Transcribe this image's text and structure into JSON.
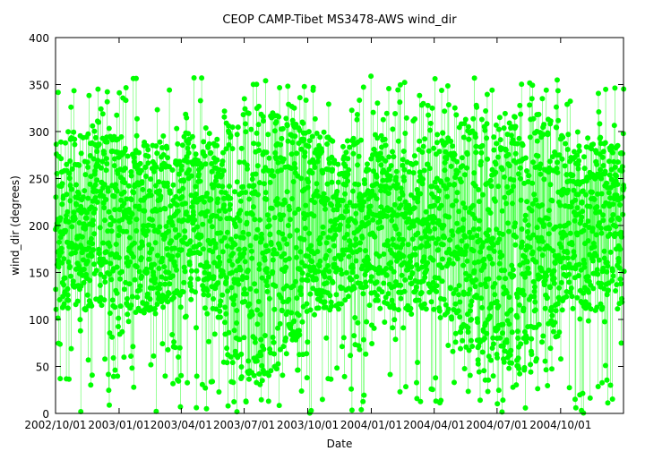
{
  "chart_data": {
    "type": "scatter",
    "title": "CEOP CAMP-Tibet MS3478-AWS  wind_dir",
    "xlabel": "Date",
    "ylabel": "wind_dir (degrees)",
    "x_range": [
      "2002-10-01",
      "2004-12-31"
    ],
    "ylim": [
      0,
      400
    ],
    "y_ticks": [
      0,
      50,
      100,
      150,
      200,
      250,
      300,
      350,
      400
    ],
    "x_ticks": [
      {
        "date": "2002-10-01",
        "label": "2002/10/01"
      },
      {
        "date": "2003-01-01",
        "label": "2003/01/01"
      },
      {
        "date": "2003-04-01",
        "label": "2003/04/01"
      },
      {
        "date": "2003-07-01",
        "label": "2003/07/01"
      },
      {
        "date": "2003-10-01",
        "label": "2003/10/01"
      },
      {
        "date": "2004-01-01",
        "label": "2004/01/01"
      },
      {
        "date": "2004-04-01",
        "label": "2004/04/01"
      },
      {
        "date": "2004-07-01",
        "label": "2004/07/01"
      },
      {
        "date": "2004-10-01",
        "label": "2004/10/01"
      }
    ],
    "grid": false,
    "series": [
      {
        "color": "#00ff00",
        "marker": "circle",
        "connected": true,
        "density_by_month": [
          {
            "month": "2002-10",
            "min": 0,
            "max": 360,
            "core_low": 110,
            "core_high": 300
          },
          {
            "month": "2002-11",
            "min": 0,
            "max": 360,
            "core_low": 110,
            "core_high": 300
          },
          {
            "month": "2002-12",
            "min": 0,
            "max": 360,
            "core_low": 110,
            "core_high": 295
          },
          {
            "month": "2003-01",
            "min": 0,
            "max": 360,
            "core_low": 105,
            "core_high": 290
          },
          {
            "month": "2003-02",
            "min": 0,
            "max": 360,
            "core_low": 105,
            "core_high": 290
          },
          {
            "month": "2003-03",
            "min": 0,
            "max": 360,
            "core_low": 110,
            "core_high": 290
          },
          {
            "month": "2003-04",
            "min": 0,
            "max": 360,
            "core_low": 120,
            "core_high": 300
          },
          {
            "month": "2003-05",
            "min": 0,
            "max": 360,
            "core_low": 100,
            "core_high": 300
          },
          {
            "month": "2003-06",
            "min": 0,
            "max": 360,
            "core_low": 30,
            "core_high": 330
          },
          {
            "month": "2003-07",
            "min": 0,
            "max": 360,
            "core_low": 30,
            "core_high": 330
          },
          {
            "month": "2003-08",
            "min": 0,
            "max": 360,
            "core_low": 40,
            "core_high": 320
          },
          {
            "month": "2003-09",
            "min": 0,
            "max": 360,
            "core_low": 80,
            "core_high": 310
          },
          {
            "month": "2003-10",
            "min": 0,
            "max": 360,
            "core_low": 110,
            "core_high": 300
          },
          {
            "month": "2003-11",
            "min": 0,
            "max": 360,
            "core_low": 110,
            "core_high": 295
          },
          {
            "month": "2003-12",
            "min": 0,
            "max": 360,
            "core_low": 110,
            "core_high": 295
          },
          {
            "month": "2004-01",
            "min": 0,
            "max": 360,
            "core_low": 110,
            "core_high": 295
          },
          {
            "month": "2004-02",
            "min": 0,
            "max": 360,
            "core_low": 105,
            "core_high": 290
          },
          {
            "month": "2004-03",
            "min": 0,
            "max": 360,
            "core_low": 110,
            "core_high": 290
          },
          {
            "month": "2004-04",
            "min": 0,
            "max": 360,
            "core_low": 100,
            "core_high": 300
          },
          {
            "month": "2004-05",
            "min": 0,
            "max": 360,
            "core_low": 60,
            "core_high": 310
          },
          {
            "month": "2004-06",
            "min": 0,
            "max": 360,
            "core_low": 30,
            "core_high": 330
          },
          {
            "month": "2004-07",
            "min": 0,
            "max": 360,
            "core_low": 40,
            "core_high": 320
          },
          {
            "month": "2004-08",
            "min": 0,
            "max": 360,
            "core_low": 40,
            "core_high": 320
          },
          {
            "month": "2004-09",
            "min": 0,
            "max": 360,
            "core_low": 80,
            "core_high": 310
          },
          {
            "month": "2004-10",
            "min": 0,
            "max": 360,
            "core_low": 110,
            "core_high": 300
          },
          {
            "month": "2004-11",
            "min": 0,
            "max": 360,
            "core_low": 110,
            "core_high": 295
          },
          {
            "month": "2004-12",
            "min": 0,
            "max": 360,
            "core_low": 110,
            "core_high": 290
          }
        ]
      }
    ]
  }
}
